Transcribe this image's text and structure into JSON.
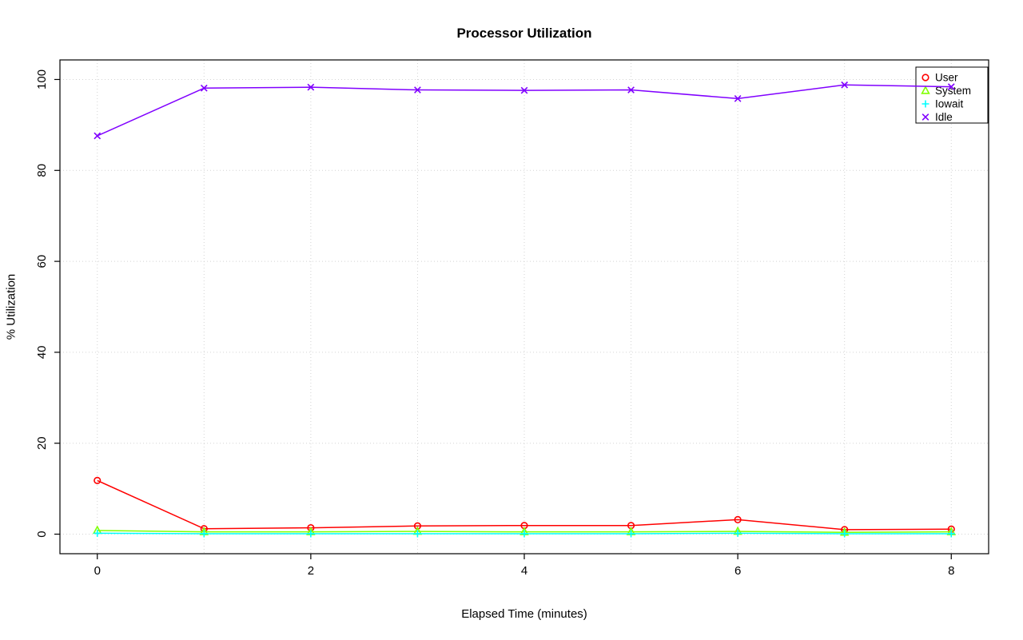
{
  "chart_data": {
    "type": "line",
    "title": "Processor Utilization",
    "xlabel": "Elapsed Time (minutes)",
    "ylabel": "% Utilization",
    "x": [
      0,
      1,
      2,
      3,
      4,
      5,
      6,
      7,
      8
    ],
    "series": [
      {
        "name": "User",
        "color": "#FF0000",
        "marker": "circle",
        "values": [
          11.8,
          1.2,
          1.4,
          1.8,
          1.9,
          1.9,
          3.2,
          1.0,
          1.1
        ]
      },
      {
        "name": "System",
        "color": "#80FF00",
        "marker": "triangle",
        "values": [
          0.8,
          0.5,
          0.5,
          0.6,
          0.5,
          0.5,
          0.6,
          0.4,
          0.5
        ]
      },
      {
        "name": "Iowait",
        "color": "#00FFFF",
        "marker": "plus",
        "values": [
          0.2,
          0.1,
          0.1,
          0.1,
          0.1,
          0.1,
          0.2,
          0.1,
          0.1
        ]
      },
      {
        "name": "Idle",
        "color": "#8000FF",
        "marker": "x",
        "values": [
          87.6,
          98.1,
          98.3,
          97.7,
          97.6,
          97.7,
          95.8,
          98.8,
          98.4
        ]
      }
    ],
    "xticks": [
      0,
      2,
      4,
      6,
      8
    ],
    "yticks": [
      0,
      20,
      40,
      60,
      80,
      100
    ],
    "xgrid": [
      0,
      1,
      2,
      3,
      4,
      5,
      6,
      7,
      8
    ],
    "xlim": [
      -0.35,
      8.35
    ],
    "ylim": [
      -4.3,
      104.3
    ],
    "grid": true,
    "grid_color": "#d3d3d3",
    "axis_color": "#000000",
    "background": "#ffffff",
    "legend_position": "top-right"
  }
}
